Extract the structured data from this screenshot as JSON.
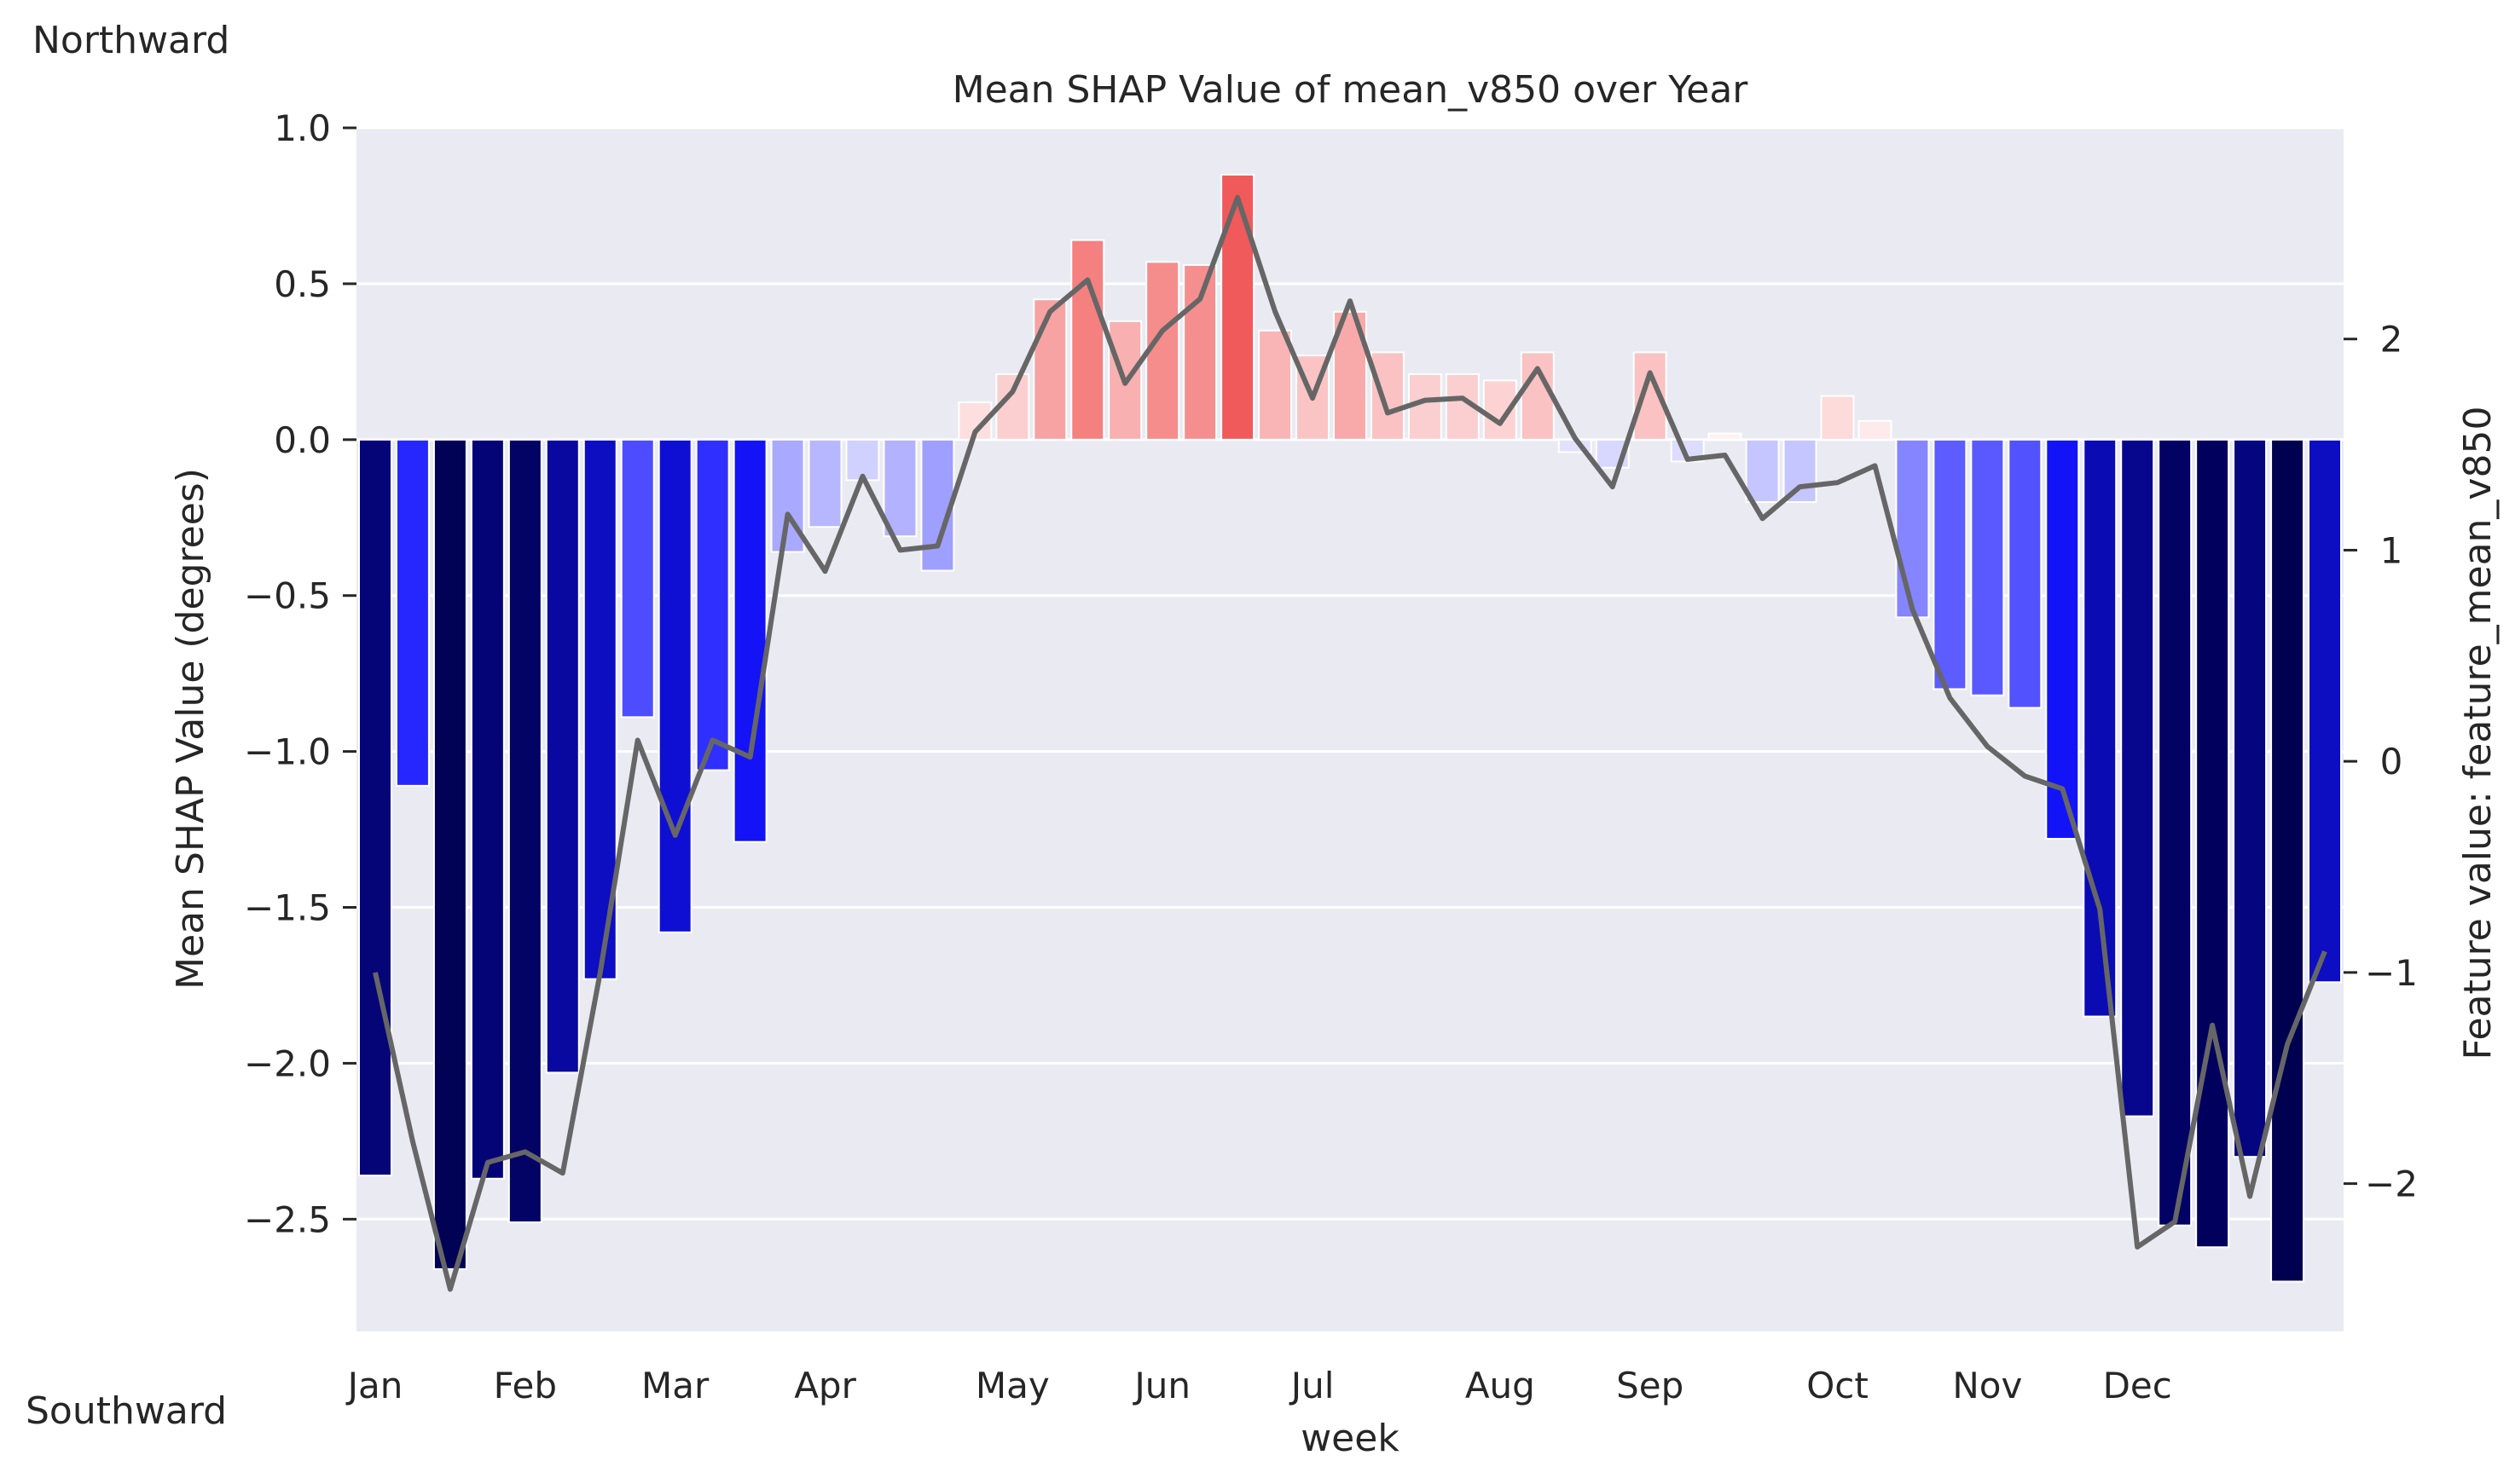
{
  "annotations": {
    "top_left": "Northward",
    "bottom_left": "Southward"
  },
  "chart_data": {
    "type": "bar",
    "title": "Mean SHAP Value of mean_v850 over Year",
    "xlabel": "week",
    "ylabel": "Mean SHAP Value (degrees)",
    "y2label": "Feature value: feature_mean_v850",
    "ylim": [
      -2.86,
      1.0
    ],
    "y2lim": [
      -2.7,
      3.0
    ],
    "yticks": [
      1.0,
      0.5,
      0.0,
      -0.5,
      -1.0,
      -1.5,
      -2.0,
      -2.5
    ],
    "yticklabels": [
      "1.0",
      "0.5",
      "0.0",
      "−0.5",
      "−1.0",
      "−1.5",
      "−2.0",
      "−2.5"
    ],
    "y2ticks": [
      2,
      1,
      0,
      -1,
      -2
    ],
    "y2ticklabels": [
      "2",
      "1",
      "0",
      "−1",
      "−2"
    ],
    "months": [
      {
        "label": "Jan",
        "week": 1
      },
      {
        "label": "Feb",
        "week": 5
      },
      {
        "label": "Mar",
        "week": 9
      },
      {
        "label": "Apr",
        "week": 13
      },
      {
        "label": "May",
        "week": 18
      },
      {
        "label": "Jun",
        "week": 22
      },
      {
        "label": "Jul",
        "week": 26
      },
      {
        "label": "Aug",
        "week": 31
      },
      {
        "label": "Sep",
        "week": 35
      },
      {
        "label": "Oct",
        "week": 40
      },
      {
        "label": "Nov",
        "week": 44
      },
      {
        "label": "Dec",
        "week": 48
      }
    ],
    "weeks": [
      1,
      2,
      3,
      4,
      5,
      6,
      7,
      8,
      9,
      10,
      11,
      12,
      13,
      14,
      15,
      16,
      17,
      18,
      19,
      20,
      21,
      22,
      23,
      24,
      25,
      26,
      27,
      28,
      29,
      30,
      31,
      32,
      33,
      34,
      35,
      36,
      37,
      38,
      39,
      40,
      41,
      42,
      43,
      44,
      45,
      46,
      47,
      48,
      49,
      50,
      51,
      52,
      53
    ],
    "series": [
      {
        "kind": "bar",
        "axis": "left",
        "values": [
          -2.36,
          -1.11,
          -2.66,
          -2.37,
          -2.51,
          -2.03,
          -1.73,
          -0.89,
          -1.58,
          -1.06,
          -1.29,
          -0.36,
          -0.28,
          -0.13,
          -0.31,
          -0.42,
          0.12,
          0.21,
          0.45,
          0.64,
          0.38,
          0.57,
          0.56,
          0.85,
          0.35,
          0.27,
          0.41,
          0.28,
          0.21,
          0.21,
          0.19,
          0.28,
          -0.04,
          -0.09,
          0.28,
          -0.07,
          0.02,
          -0.2,
          -0.2,
          0.14,
          0.06,
          -0.57,
          -0.8,
          -0.82,
          -0.86,
          -1.28,
          -1.85,
          -2.17,
          -2.52,
          -2.59,
          -2.3,
          -2.7,
          -1.74
        ]
      },
      {
        "kind": "line",
        "axis": "right",
        "color": "#666666",
        "values": [
          -1.0,
          -1.8,
          -2.5,
          -1.9,
          -1.85,
          -1.95,
          -1.0,
          0.1,
          -0.35,
          0.1,
          0.02,
          1.17,
          0.9,
          1.35,
          1.0,
          1.02,
          1.56,
          1.75,
          2.13,
          2.28,
          1.79,
          2.04,
          2.19,
          2.67,
          2.13,
          1.72,
          2.18,
          1.65,
          1.71,
          1.72,
          1.6,
          1.86,
          1.53,
          1.3,
          1.84,
          1.43,
          1.45,
          1.15,
          1.3,
          1.32,
          1.4,
          0.72,
          0.3,
          0.07,
          -0.07,
          -0.13,
          -0.7,
          -2.3,
          -2.18,
          -1.25,
          -2.06,
          -1.34,
          -0.9
        ]
      }
    ],
    "colors": {
      "axes_bg": "#eaeaf2",
      "grid": "#ffffff",
      "negative_strong": "#000050",
      "negative_mid": "#0000ff",
      "positive": "#f00000"
    }
  }
}
